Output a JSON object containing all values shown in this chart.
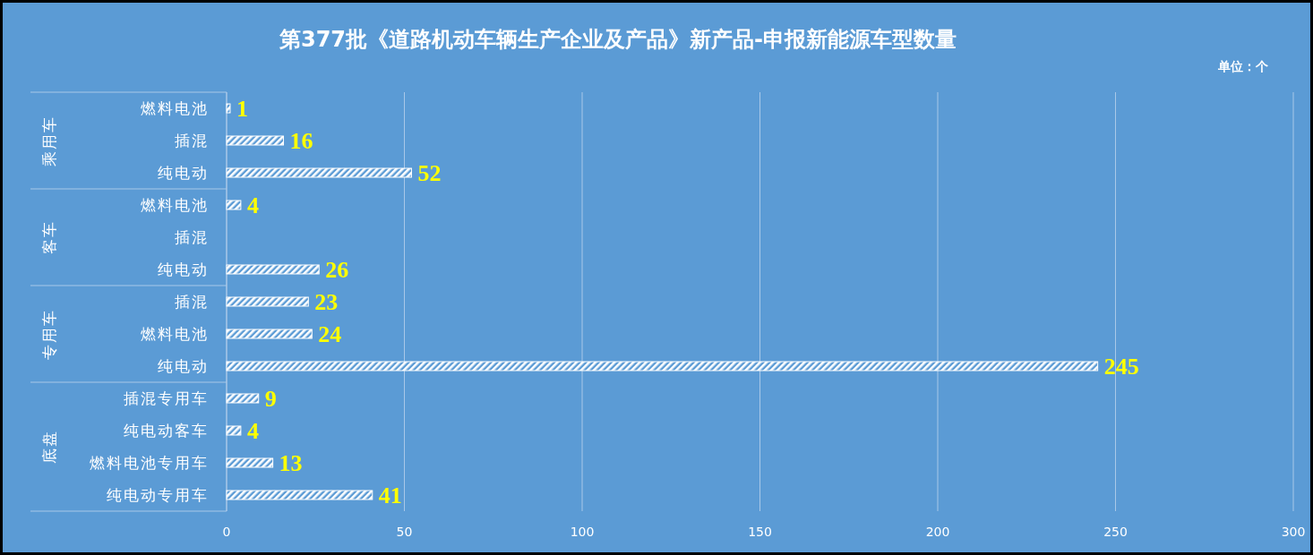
{
  "chart_data": {
    "type": "bar",
    "orientation": "horizontal",
    "title": "第377批《道路机动车辆生产企业及产品》新产品-申报新能源车型数量",
    "subtitle": "单位：个",
    "categories": [
      "燃料电池",
      "插混",
      "纯电动",
      "燃料电池",
      "插混",
      "纯电动",
      "插混",
      "燃料电池",
      "纯电动",
      "插混专用车",
      "纯电动客车",
      "燃料电池专用车",
      "纯电动专用车"
    ],
    "values": [
      1,
      16,
      52,
      4,
      null,
      26,
      23,
      24,
      245,
      9,
      4,
      13,
      41
    ],
    "color": "#ffffff",
    "xlim": [
      0,
      300
    ],
    "xticks": [
      0,
      50,
      100,
      150,
      200,
      250,
      300
    ],
    "grid": "x",
    "data_labels": true,
    "annotations": [
      "乘用车",
      "客车",
      "专用车",
      "底盘"
    ]
  }
}
